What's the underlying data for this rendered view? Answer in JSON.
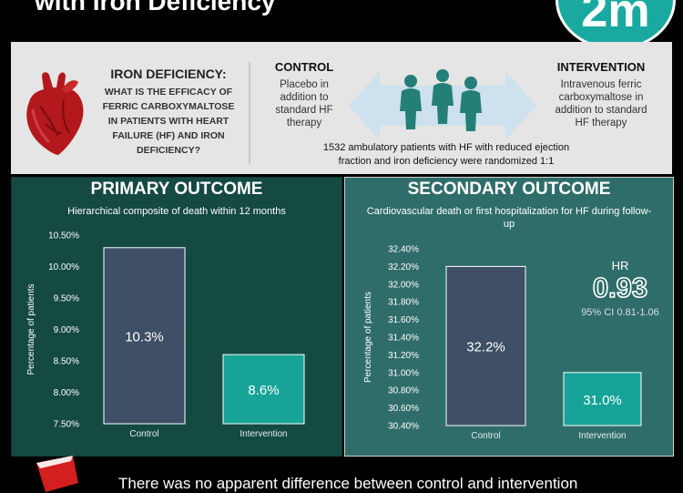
{
  "header": {
    "title": "with Iron Deficiency",
    "logo_text": "2m"
  },
  "question": {
    "title": "IRON DEFICIENCY:",
    "lines": [
      "WHAT IS THE EFFICACY OF",
      "FERRIC CARBOXYMALTOSE",
      "IN PATIENTS WITH HEART",
      "FAILURE (HF) AND IRON",
      "DEFICIENCY?"
    ]
  },
  "control": {
    "title": "CONTROL",
    "lines": [
      "Placebo in",
      "addition to",
      "standard HF",
      "therapy"
    ]
  },
  "intervention": {
    "title": "INTERVENTION",
    "lines": [
      "Intravenous ferric",
      "carboxymaltose in",
      "addition to standard",
      "HF therapy"
    ]
  },
  "randomized": {
    "lines": [
      "1532 ambulatory patients with HF with reduced ejection",
      "fraction and iron deficiency were randomized 1:1"
    ]
  },
  "primary": {
    "title": "PRIMARY OUTCOME",
    "subtitle": "Hierarchical composite of death within 12 months"
  },
  "secondary": {
    "title": "SECONDARY OUTCOME",
    "subtitle_lines": [
      "Cardiovascular death or first hospitalization for HF during follow-",
      "up"
    ],
    "hr_label": "HR",
    "hr_value": "0.93",
    "ci": "95% CI 0.81-1.06"
  },
  "bottom_text": "There was no apparent difference between control and intervention",
  "colors": {
    "control": "#3e4f66",
    "intervention": "#17a398",
    "primary_bg": "#144a42",
    "secondary_bg": "#2f6d6a"
  },
  "chart_data": [
    {
      "type": "bar",
      "categories": [
        "Control",
        "Intervention"
      ],
      "values": [
        10.3,
        8.6
      ],
      "data_labels": [
        "10.3%",
        "8.6%"
      ],
      "ylabel": "Percentage of patients",
      "ylim": [
        7.5,
        10.5
      ],
      "yticks": [
        7.5,
        8.0,
        8.5,
        9.0,
        9.5,
        10.0,
        10.5
      ],
      "ytick_labels": [
        "7.50%",
        "8.00%",
        "8.50%",
        "9.00%",
        "9.50%",
        "10.00%",
        "10.50%"
      ],
      "grid": false
    },
    {
      "type": "bar",
      "categories": [
        "Control",
        "Intervention"
      ],
      "values": [
        32.2,
        31.0
      ],
      "data_labels": [
        "32.2%",
        "31.0%"
      ],
      "ylabel": "Percentage of patients",
      "ylim": [
        30.4,
        32.4
      ],
      "yticks": [
        30.4,
        30.6,
        30.8,
        31.0,
        31.2,
        31.4,
        31.6,
        31.8,
        32.0,
        32.2,
        32.4
      ],
      "ytick_labels": [
        "30.40%",
        "30.60%",
        "30.80%",
        "31.00%",
        "31.20%",
        "31.40%",
        "31.60%",
        "31.80%",
        "32.00%",
        "32.20%",
        "32.40%"
      ],
      "grid": false
    }
  ]
}
